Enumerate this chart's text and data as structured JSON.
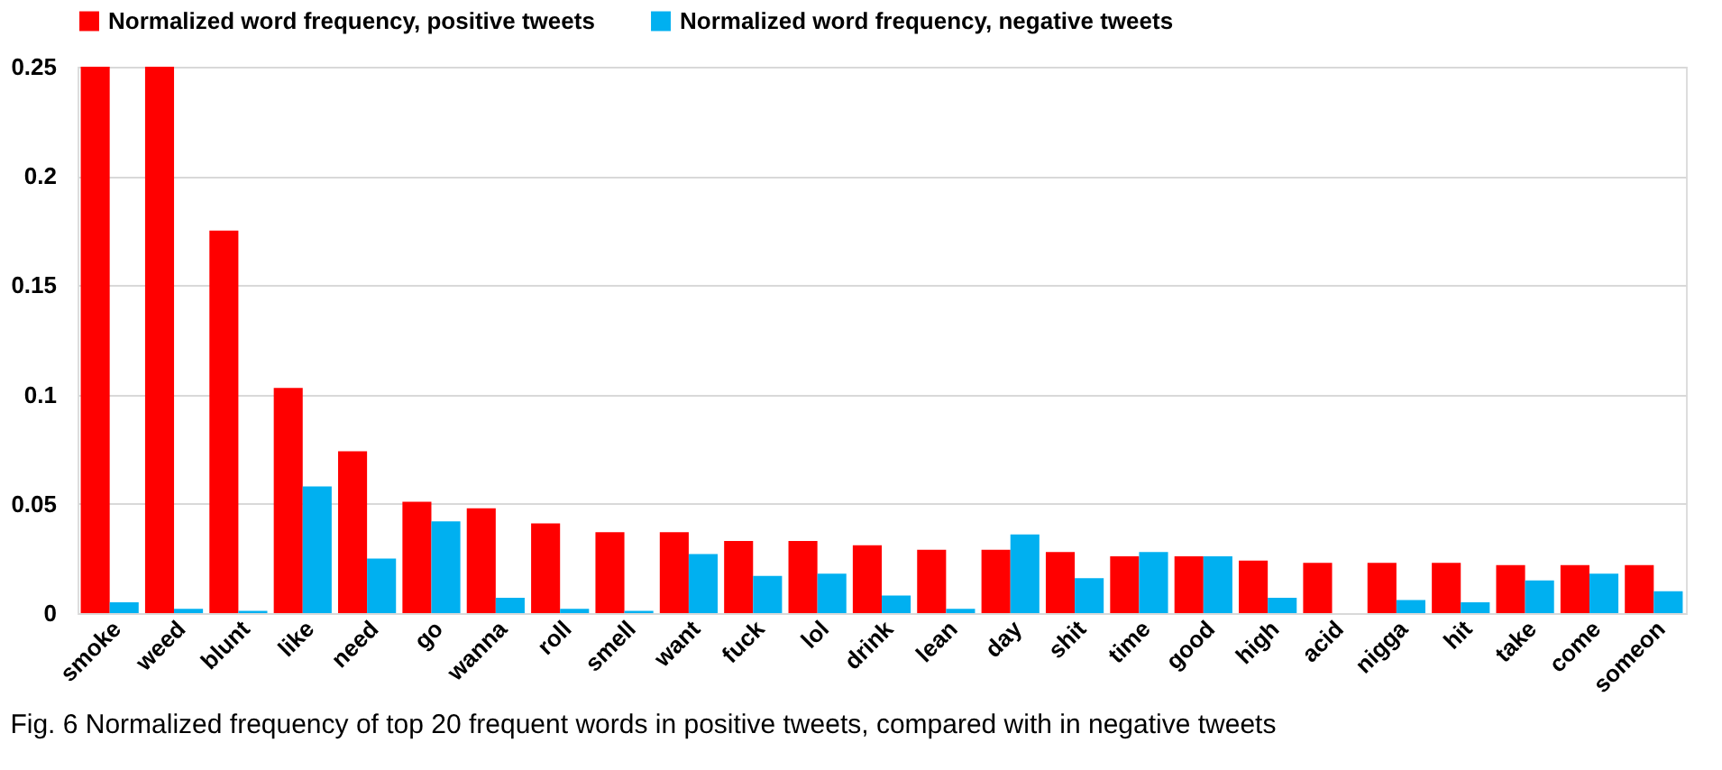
{
  "chart_data": {
    "type": "bar",
    "categories": [
      "smoke",
      "weed",
      "blunt",
      "like",
      "need",
      "go",
      "wanna",
      "roll",
      "smell",
      "want",
      "fuck",
      "lol",
      "drink",
      "lean",
      "day",
      "shit",
      "time",
      "good",
      "high",
      "acid",
      "nigga",
      "hit",
      "take",
      "come",
      "someon"
    ],
    "series": [
      {
        "name": "Normalized word frequency, positive tweets",
        "color": "#ff0000",
        "values": [
          0.25,
          0.25,
          0.175,
          0.103,
          0.074,
          0.051,
          0.048,
          0.041,
          0.037,
          0.037,
          0.033,
          0.033,
          0.031,
          0.029,
          0.029,
          0.028,
          0.026,
          0.026,
          0.024,
          0.023,
          0.023,
          0.023,
          0.022,
          0.022,
          0.022
        ]
      },
      {
        "name": "Normalized word frequency, negative tweets",
        "color": "#00b0f0",
        "values": [
          0.005,
          0.002,
          0.001,
          0.058,
          0.025,
          0.042,
          0.007,
          0.002,
          0.001,
          0.027,
          0.017,
          0.018,
          0.008,
          0.002,
          0.036,
          0.016,
          0.028,
          0.026,
          0.007,
          0.0,
          0.006,
          0.005,
          0.015,
          0.018,
          0.01
        ]
      }
    ],
    "ylim": [
      0,
      0.25
    ],
    "yticks": [
      0,
      0.05,
      0.1,
      0.15,
      0.2,
      0.25
    ],
    "grid": "y",
    "legend": "top",
    "annotations": [
      "Fig. 6  Normalized frequency of top 20 frequent words in positive tweets, compared with in negative tweets"
    ]
  }
}
